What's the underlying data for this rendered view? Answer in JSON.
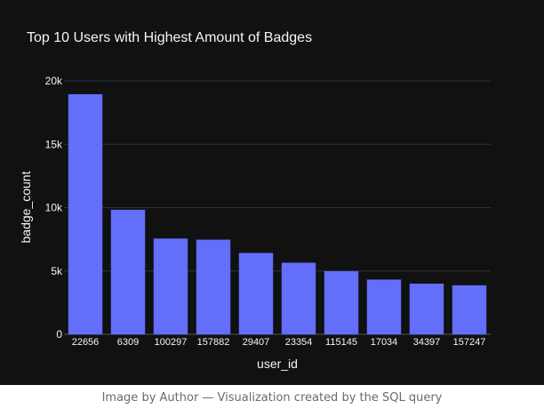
{
  "chart_data": {
    "type": "bar",
    "title": "Top 10 Users with Highest Amount of Badges",
    "xlabel": "user_id",
    "ylabel": "badge_count",
    "categories": [
      "22656",
      "6309",
      "100297",
      "157882",
      "29407",
      "23354",
      "115145",
      "17034",
      "34397",
      "157247"
    ],
    "values": [
      18950,
      9830,
      7560,
      7470,
      6420,
      5650,
      4980,
      4320,
      4000,
      3870
    ],
    "ylim": [
      0,
      20000
    ],
    "yticks": [
      0,
      5000,
      10000,
      15000,
      20000
    ],
    "ytick_labels": [
      "0",
      "5k",
      "10k",
      "15k",
      "20k"
    ],
    "grid": true,
    "colors": {
      "bar": "#636efa",
      "background": "#111111",
      "grid": "#283442",
      "text": "#f2f5fa"
    }
  },
  "caption": "Image by Author — Visualization created by the SQL query"
}
